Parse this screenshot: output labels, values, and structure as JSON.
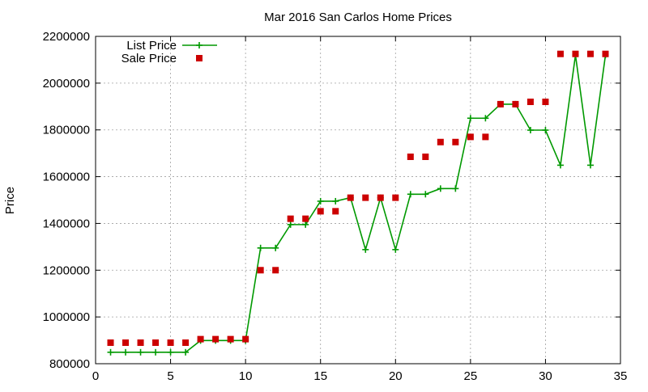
{
  "chart_data": {
    "type": "line",
    "title": "Mar 2016 San Carlos Home Prices",
    "xlabel": "",
    "ylabel": "Price",
    "xlim": [
      0,
      35
    ],
    "ylim": [
      800000,
      2200000
    ],
    "x_ticks": [
      0,
      5,
      10,
      15,
      20,
      25,
      30,
      35
    ],
    "y_ticks": [
      800000,
      1000000,
      1200000,
      1400000,
      1600000,
      1800000,
      2000000,
      2200000
    ],
    "grid": true,
    "legend_position": "top-left",
    "x": [
      1,
      2,
      3,
      4,
      5,
      6,
      7,
      8,
      9,
      10,
      11,
      12,
      13,
      14,
      15,
      16,
      17,
      18,
      19,
      20,
      21,
      22,
      23,
      24,
      25,
      26,
      27,
      28,
      29,
      30,
      31,
      32,
      33,
      34
    ],
    "series": [
      {
        "name": "List Price",
        "style": "line+plus-markers",
        "color": "#009900",
        "values": [
          849000,
          849000,
          849000,
          849000,
          849000,
          849000,
          899000,
          899000,
          899000,
          899000,
          1295000,
          1295000,
          1395000,
          1395000,
          1495000,
          1495000,
          1510000,
          1288000,
          1510000,
          1288000,
          1525000,
          1525000,
          1549000,
          1549000,
          1850000,
          1850000,
          1910000,
          1910000,
          1799000,
          1799000,
          1649000,
          2120000,
          1649000,
          2120000
        ]
      },
      {
        "name": "Sale Price",
        "style": "square-markers",
        "color": "#cc0000",
        "values": [
          890000,
          890000,
          890000,
          890000,
          890000,
          890000,
          905000,
          905000,
          905000,
          905000,
          1200000,
          1200000,
          1420000,
          1420000,
          1452000,
          1452000,
          1510000,
          1510000,
          1510000,
          1510000,
          1685000,
          1685000,
          1748000,
          1748000,
          1770000,
          1770000,
          1910000,
          1910000,
          1920000,
          1920000,
          2125000,
          2125000,
          2125000,
          2125000
        ]
      }
    ]
  }
}
